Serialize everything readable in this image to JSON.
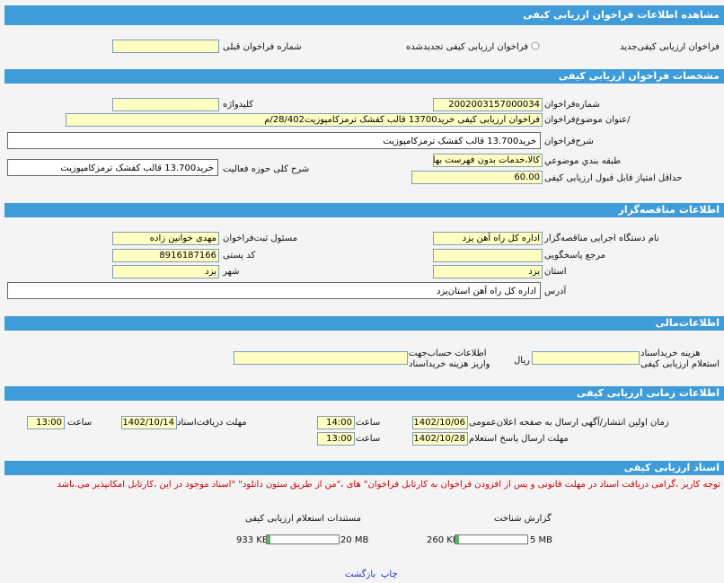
{
  "header": {
    "title": "مشاهده اطلاعات فراخوان ارزيابی کيفی"
  },
  "type_row": {
    "new": "فراخوان ارزیابی کیفی‌جدید",
    "renewed": "فراخوان ارزیابی کیفی تجدیدشده",
    "prev_label": "شماره فراخوان قبلی",
    "prev_value": ""
  },
  "spec": {
    "title": "مشخصات فراخوان ارزیابی کیفی",
    "number_label": "شماره‌فراخوان",
    "number": "2002003157000034",
    "keyword_label": "کلیدواژه",
    "keyword": "",
    "subject_label": "/عنوان موضوع‌فراخوان",
    "subject": "فراخوان ارزیابی کیفی خرید13700 قالب کفشک ترمزکامپوزیت28/402/م",
    "desc_label": "شرح‌فراخوان",
    "desc": "خرید13.700 قالب کفشک ترمزکامپوزیت",
    "class_label": "طبقه بندي موضوعي",
    "class": "کالا،خدمات بدون فهرست بها",
    "scope_label": "شرح کلی حوزه فعالیت",
    "scope": "خرید13.700 قالب کفشک ترمزکامپوزیت",
    "min_label": "حداقل امتیاز قابل قبول ارزیابی کیفی",
    "min": "60.00"
  },
  "org": {
    "title": "اطلاعات مناقصه‌گزار",
    "agency_label": "نام دستگاه اجرایی مناقصه‌گزار",
    "agency": "اداره کل راه آهن یزد",
    "officer_label": "مسئول ثبت‌فراخوان",
    "officer": "مهدی خوانین زاده",
    "ref_label": "مرجع پاسخگویی",
    "ref": "",
    "postal_label": "کد پستی",
    "postal": "8916187166",
    "province_label": "استان",
    "province": "یزد",
    "city_label": "شهر",
    "city": "یزد",
    "address_label": "آدرس",
    "address": "اداره کل راه آهن استان‌یزد"
  },
  "finance": {
    "title": "اطلاعات‌مالی",
    "fee_label": [
      "هزینه خریداسناد",
      "استعلام ارزیابی کیفی"
    ],
    "fee": "",
    "currency": "ریال",
    "account_label": [
      "اطلاعات حساب‌جهت",
      "واریز هزینه خریداسناد"
    ],
    "account": ""
  },
  "timing": {
    "title": "اطلاعات زمانی ارزیابی کیفی",
    "publish_label": "زمان اولین انتشار/آگهی ارسال به صفحه اعلان‌عمومی",
    "publish_date": "1402/10/06",
    "publish_time_label": "ساعت",
    "publish_time": "14:00",
    "docs_label": "مهلت دریافت‌اسناد",
    "docs_date": "1402/10/14",
    "docs_time_label": "ساعت",
    "docs_time": "13:00",
    "reply_label": "مهلت ارسال پاسخ استعلام",
    "reply_date": "1402/10/28",
    "reply_time_label": "ساعت",
    "reply_time": "13:00"
  },
  "documents": {
    "title": "اسناد ارزیابی کیفی",
    "notice": "توجه کاربر ،گرامی دریافت اسناد در مهلت قانونی و پس از افزودن فراخوان به کارتابل فراخوان\" های ،\"من از طریق ستون دانلود\" \"اسناد موجود در این ،کارتابل امکانپذیر می.باشد",
    "files": [
      {
        "name": "گزارش شناخت",
        "size": "260 KB",
        "max": "5 MB"
      },
      {
        "name": "مستندات استعلام ارزیابی کیفی",
        "size": "933 KB",
        "max": "20 MB"
      }
    ]
  },
  "links": {
    "print": "چاپ",
    "back": "بازگشت"
  }
}
